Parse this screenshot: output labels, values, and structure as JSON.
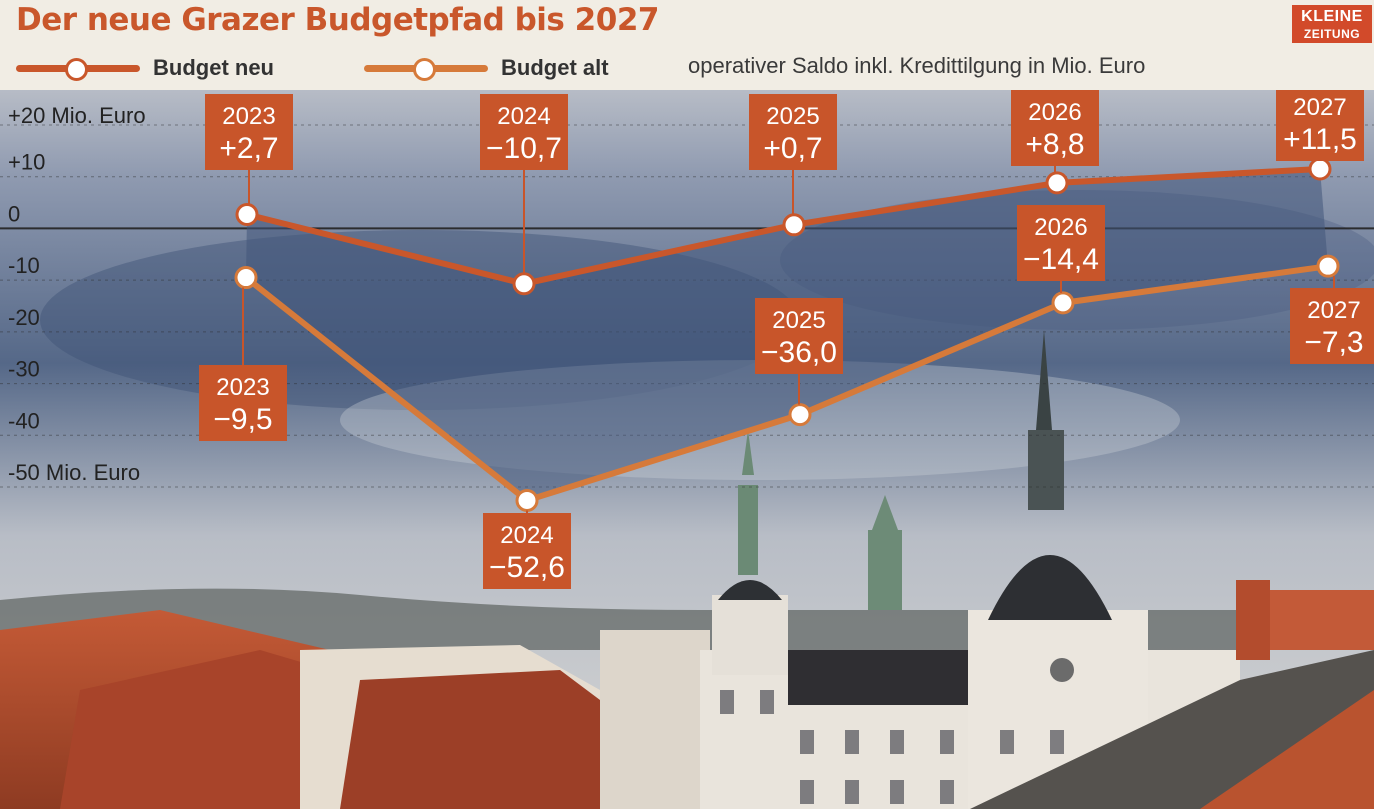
{
  "title": "Der neue Grazer Budgetpfad bis 2027",
  "logo": {
    "line1": "KLEINE",
    "line2": "ZEITUNG"
  },
  "legend": [
    {
      "label": "Budget neu",
      "color": "#c9572b"
    },
    {
      "label": "Budget alt",
      "color": "#d67a3a"
    }
  ],
  "subtitle": "operativer Saldo inkl. Kredittilgung in Mio. Euro",
  "colors": {
    "label_box": "#c8552a",
    "sky": "#41557a",
    "roof": "#b24a2c"
  },
  "chart_data": {
    "type": "line",
    "title": "Der neue Grazer Budgetpfad bis 2027",
    "subtitle": "operativer Saldo inkl. Kredittilgung in Mio. Euro",
    "x": [
      "2023",
      "2024",
      "2025",
      "2026",
      "2027"
    ],
    "ylim": [
      -50,
      20
    ],
    "yticks": [
      20,
      10,
      0,
      -10,
      -20,
      -30,
      -40,
      -50
    ],
    "ytick_labels": [
      "+20 Mio. Euro",
      "+10",
      "0",
      "-10",
      "-20",
      "-30",
      "-40",
      "-50 Mio. Euro"
    ],
    "grid": true,
    "legend_position": "top-left",
    "series": [
      {
        "name": "Budget neu",
        "values": [
          2.7,
          -10.7,
          0.7,
          8.8,
          11.5
        ],
        "labels": [
          "+2,7",
          "−10,7",
          "+0,7",
          "+8,8",
          "+11,5"
        ]
      },
      {
        "name": "Budget alt",
        "values": [
          -9.5,
          -52.6,
          -36.0,
          -14.4,
          -7.3
        ],
        "labels": [
          "−9,5",
          "−52,6",
          "−36,0",
          "−14,4",
          "−7,3"
        ]
      }
    ]
  }
}
